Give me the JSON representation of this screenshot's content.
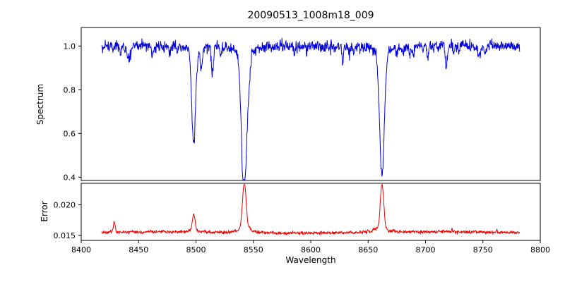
{
  "title": "20090513_1008m18_009",
  "chart_data": {
    "type": "line",
    "title": "20090513_1008m18_009",
    "xlabel": "Wavelength",
    "legend": "none",
    "grid": false,
    "xlim": [
      8400,
      8800
    ],
    "x_tick_values": [
      8400,
      8450,
      8500,
      8550,
      8600,
      8650,
      8700,
      8750,
      8800
    ],
    "x_tick_labels": [
      "8400",
      "8450",
      "8500",
      "8550",
      "8600",
      "8650",
      "8700",
      "8750",
      "8800"
    ],
    "x_range_data": [
      8418,
      8782
    ],
    "panels": [
      {
        "ylabel": "Spectrum",
        "ylim": [
          0.385,
          1.085
        ],
        "ytick_values": [
          0.4,
          0.6,
          0.8,
          1.0
        ],
        "ytick_labels": [
          "0.4",
          "0.6",
          "0.8",
          "1.0"
        ],
        "color": "#0000dd",
        "series": {
          "name": "spectrum",
          "baseline": 1.0,
          "noise_sigma": 0.013,
          "weak_line_count": 48,
          "weak_line_depth_max": 0.08,
          "absorption_lines": [
            {
              "center": 8498.0,
              "depth": 0.43,
              "sigma": 1.6
            },
            {
              "center": 8504.5,
              "depth": 0.1,
              "sigma": 0.7
            },
            {
              "center": 8514.0,
              "depth": 0.09,
              "sigma": 0.8
            },
            {
              "center": 8542.1,
              "depth": 0.6,
              "sigma": 2.4
            },
            {
              "center": 8662.1,
              "depth": 0.56,
              "sigma": 2.0
            }
          ]
        }
      },
      {
        "ylabel": "Error",
        "ylim": [
          0.0142,
          0.0235
        ],
        "ytick_values": [
          0.015,
          0.02
        ],
        "ytick_labels": [
          "0.015",
          "0.020"
        ],
        "color": "#ee0000",
        "series": {
          "name": "error",
          "baseline": 0.0155,
          "noise_sigma": 0.00012,
          "bump_count": 25,
          "bump_height_max": 0.0006,
          "emission_peaks": [
            {
              "center": 8429.0,
              "height": 0.0014,
              "sigma": 0.7
            },
            {
              "center": 8498.0,
              "height": 0.0026,
              "sigma": 1.2
            },
            {
              "center": 8542.1,
              "height": 0.0076,
              "sigma": 1.6
            },
            {
              "center": 8662.1,
              "height": 0.0073,
              "sigma": 1.5
            }
          ]
        }
      }
    ]
  }
}
